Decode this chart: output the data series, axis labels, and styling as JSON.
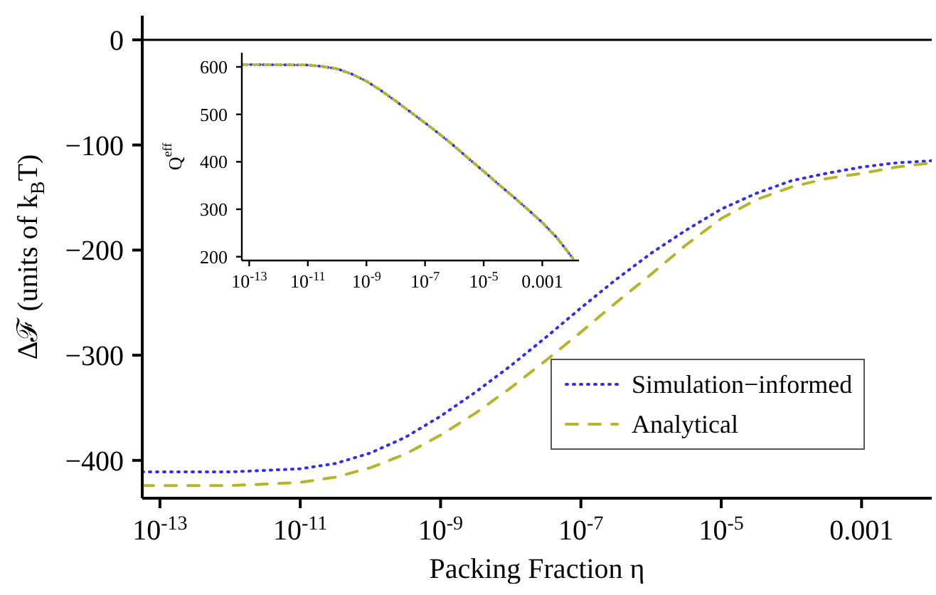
{
  "chart_data": [
    {
      "type": "line",
      "xlabel": "Packing Fraction η",
      "ylabel": "Δℱ (units of k$_{B}$T)",
      "log": "x",
      "legend": "bottom right",
      "x": [
        5.6e-14,
        1e-12,
        1e-11,
        3.16e-11,
        1e-10,
        3.16e-10,
        1e-09,
        3.16e-09,
        1e-08,
        3.16e-08,
        1e-07,
        3.16e-07,
        1e-06,
        3.16e-06,
        1e-05,
        3.16e-05,
        0.0001,
        0.000316,
        0.001,
        0.00316,
        0.01
      ],
      "series": [
        {
          "name": "Simulation−informed",
          "color": "#2e2ef0",
          "line_style": "dotted",
          "values": [
            -411,
            -411,
            -408,
            -403,
            -393,
            -378,
            -358,
            -335,
            -310,
            -283,
            -255,
            -228,
            -203,
            -181,
            -161,
            -146,
            -134,
            -127,
            -121,
            -117,
            -115
          ]
        },
        {
          "name": "Analytical",
          "color": "#b5b52a",
          "line_style": "dashed",
          "values": [
            -424,
            -424,
            -421,
            -416,
            -407,
            -394,
            -376,
            -355,
            -331,
            -305,
            -278,
            -250,
            -223,
            -195,
            -170,
            -152,
            -140,
            -132,
            -127,
            -121,
            -117
          ]
        }
      ],
      "xlim": [
        5.6e-14,
        0.01
      ],
      "ylim": [
        -436,
        23
      ],
      "xticks": [
        {
          "value": 1e-13,
          "label": "10$^{-13}$"
        },
        {
          "value": 1e-11,
          "label": "10$^{-11}$"
        },
        {
          "value": 1e-09,
          "label": "10$^{-9}$"
        },
        {
          "value": 1e-07,
          "label": "10$^{-7}$"
        },
        {
          "value": 1e-05,
          "label": "10$^{-5}$"
        },
        0.001
      ],
      "yticks": [
        0,
        {
          "value": -100,
          "label": "−100"
        },
        {
          "value": -200,
          "label": "−200"
        },
        {
          "value": -300,
          "label": "−300"
        },
        {
          "value": -400,
          "label": "−400"
        }
      ],
      "ref_lines": [
        {
          "axis": "y",
          "value": 0,
          "color": "#000000",
          "line_style": "solid"
        }
      ]
    },
    {
      "type": "line",
      "ylabel": "Q$^{eff}$",
      "log": "x",
      "x": [
        5.6e-14,
        1e-11,
        3.16e-11,
        1e-10,
        3.16e-10,
        1e-09,
        3.16e-09,
        1e-08,
        3.16e-08,
        1e-07,
        3.16e-07,
        1e-06,
        3.16e-06,
        1e-05,
        3.16e-05,
        0.0001,
        0.000316,
        0.001,
        0.00316,
        0.0112
      ],
      "series": [
        {
          "color": "#2e2ef0",
          "line_style": "dotted",
          "values": [
            605,
            604,
            601,
            596,
            585,
            570,
            550,
            528,
            505,
            482,
            458,
            433,
            406,
            380,
            353,
            327,
            300,
            272,
            240,
            196
          ]
        },
        {
          "color": "#b5b52a",
          "line_style": "dashed",
          "values": [
            605,
            604,
            601,
            596,
            585,
            570,
            550,
            528,
            505,
            482,
            458,
            433,
            406,
            380,
            353,
            327,
            300,
            272,
            240,
            196
          ]
        }
      ],
      "xlim": [
        5.6e-14,
        0.0178
      ],
      "ylim": [
        192,
        630
      ],
      "xticks": [
        {
          "value": 1e-13,
          "label": "10$^{-13}$"
        },
        {
          "value": 1e-11,
          "label": "10$^{-11}$"
        },
        {
          "value": 1e-09,
          "label": "10$^{-9}$"
        },
        {
          "value": 1e-07,
          "label": "10$^{-7}$"
        },
        {
          "value": 1e-05,
          "label": "10$^{-5}$"
        },
        0.001
      ],
      "yticks": [
        200,
        300,
        400,
        500,
        600
      ]
    }
  ]
}
